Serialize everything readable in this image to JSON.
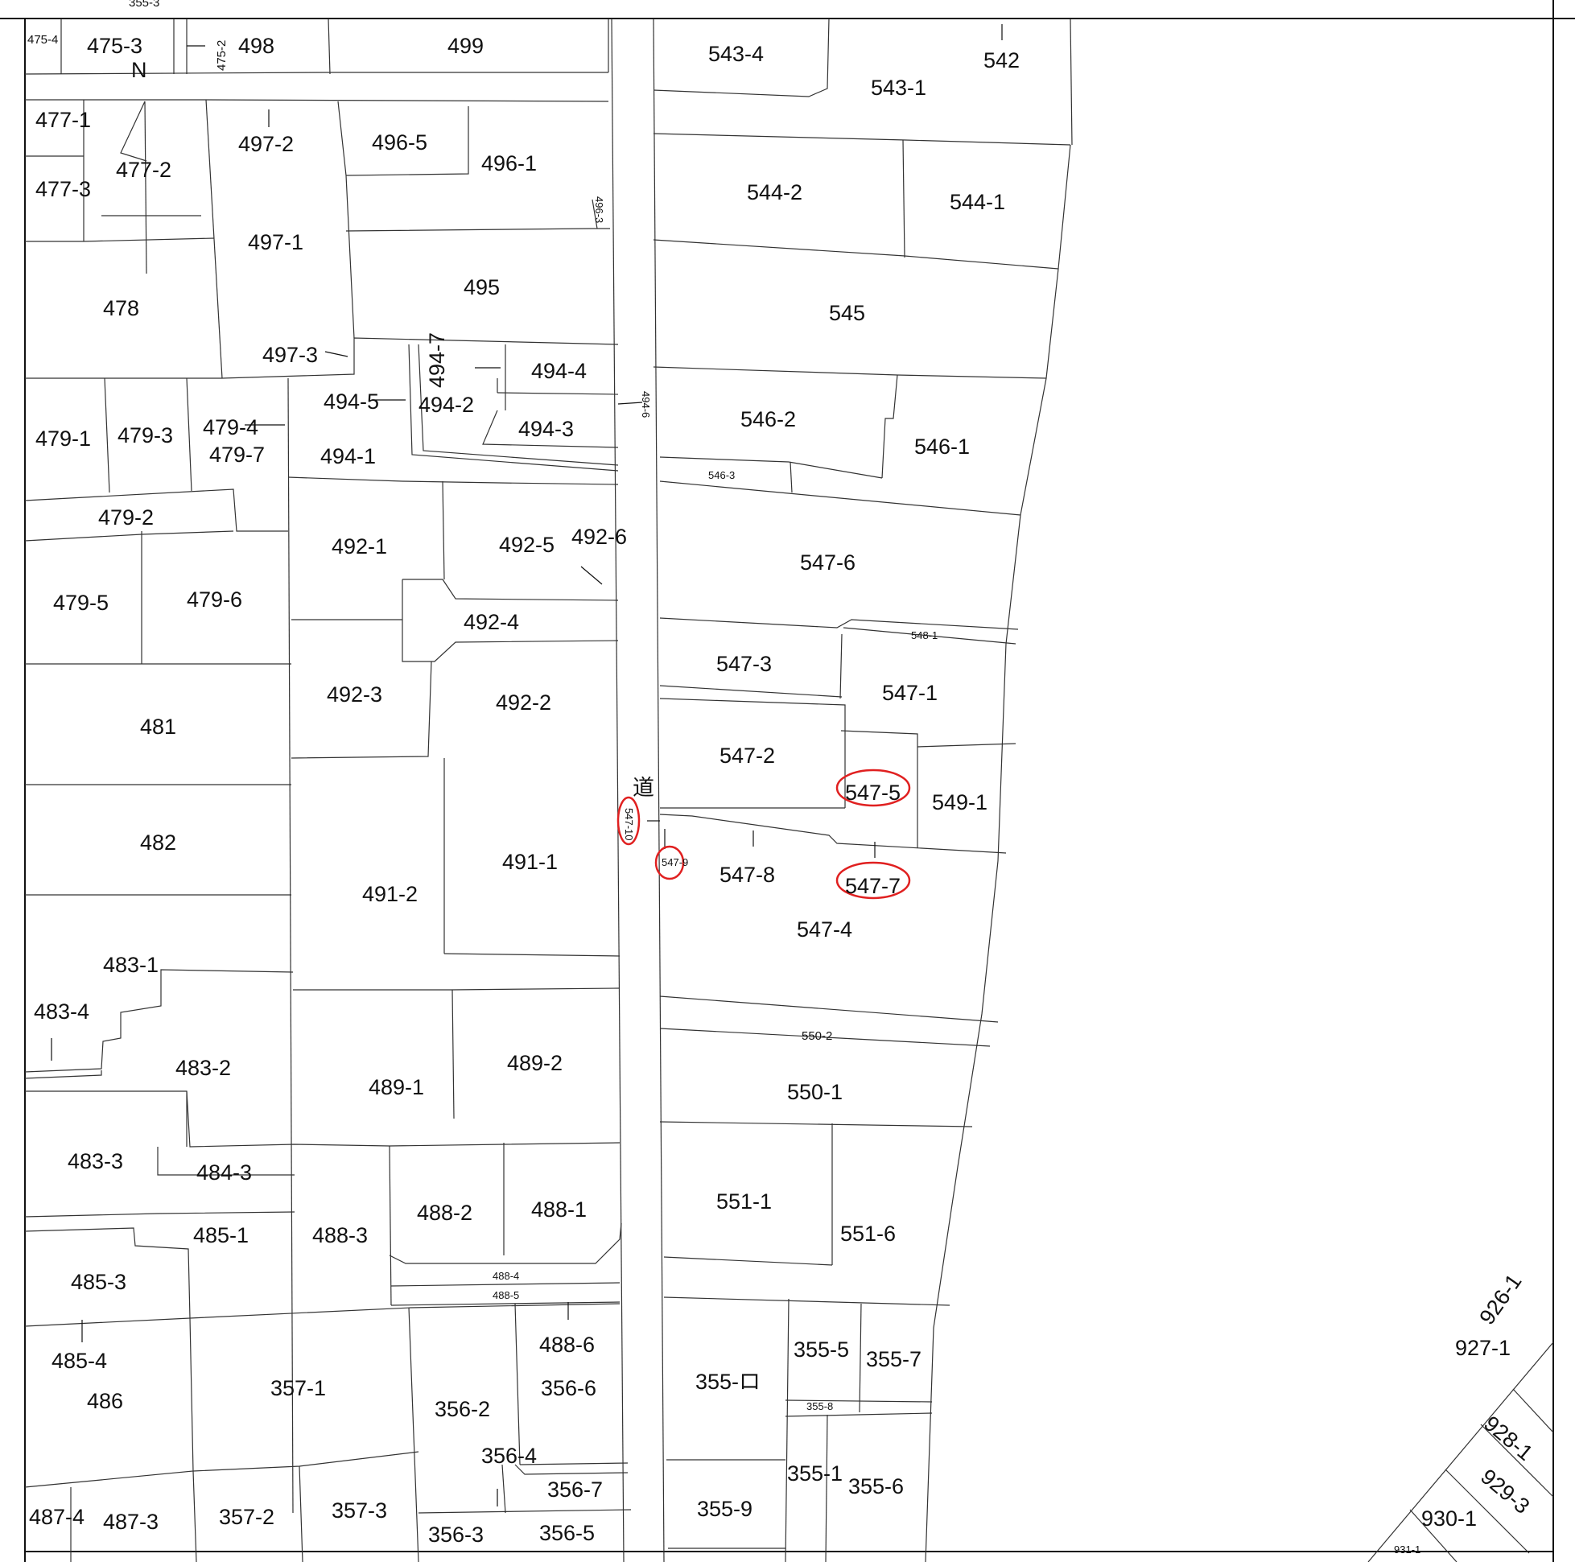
{
  "map": {
    "north_label": "N",
    "road_label": "道",
    "top_cut_label": "355-3",
    "parcels": {
      "p475_4": "475-4",
      "p475_3": "475-3",
      "p475_2": "475-2",
      "p498": "498",
      "p499": "499",
      "p543_4": "543-4",
      "p542": "542",
      "p543_1": "543-1",
      "p477_1": "477-1",
      "p477_2": "477-2",
      "p477_3": "477-3",
      "p497_2": "497-2",
      "p496_5": "496-5",
      "p496_1": "496-1",
      "p496_3": "496-3",
      "p497_1": "497-1",
      "p544_2": "544-2",
      "p544_1": "544-1",
      "p478": "478",
      "p495": "495",
      "p545": "545",
      "p497_3": "497-3",
      "p494_7": "494-7",
      "p494_4": "494-4",
      "p494_5": "494-5",
      "p494_2": "494-2",
      "p494_6": "494-6",
      "p546_2": "546-2",
      "p546_1": "546-1",
      "p479_1": "479-1",
      "p479_3": "479-3",
      "p479_4": "479-4",
      "p479_7": "479-7",
      "p494_3": "494-3",
      "p494_1": "494-1",
      "p546_3": "546-3",
      "p479_2": "479-2",
      "p492_1": "492-1",
      "p492_5": "492-5",
      "p492_6": "492-6",
      "p547_6": "547-6",
      "p479_5": "479-5",
      "p479_6": "479-6",
      "p492_4": "492-4",
      "p548_1": "548-1",
      "p547_3": "547-3",
      "p547_1": "547-1",
      "p492_3": "492-3",
      "p492_2": "492-2",
      "p481": "481",
      "p547_2": "547-2",
      "p547_5": "547-5",
      "p549_1": "549-1",
      "p547_10": "547-10",
      "p482": "482",
      "p491_1": "491-1",
      "p547_9": "547-9",
      "p547_8": "547-8",
      "p547_7": "547-7",
      "p491_2": "491-2",
      "p547_4": "547-4",
      "p483_1": "483-1",
      "p483_4": "483-4",
      "p550_2": "550-2",
      "p489_2": "489-2",
      "p483_2": "483-2",
      "p550_1": "550-1",
      "p489_1": "489-1",
      "p483_3": "483-3",
      "p484_3": "484-3",
      "p551_1": "551-1",
      "p485_1": "485-1",
      "p488_2": "488-2",
      "p488_1": "488-1",
      "p551_6": "551-6",
      "p488_3": "488-3",
      "p485_3": "485-3",
      "p488_4": "488-4",
      "p488_5": "488-5",
      "p926_1": "926-1",
      "p488_6": "488-6",
      "p485_4": "485-4",
      "p355_5": "355-5",
      "p927_1": "927-1",
      "p357_1": "357-1",
      "p356_6": "356-6",
      "p355_7": "355-7",
      "p486": "486",
      "p356_2": "356-2",
      "p355_ro": "355-ロ",
      "p355_8": "355-8",
      "p928_1": "928-1",
      "p356_4": "356-4",
      "p355_1": "355-1",
      "p355_6": "355-6",
      "p356_7": "356-7",
      "p929_3": "929-3",
      "p487_4": "487-4",
      "p487_3": "487-3",
      "p357_2": "357-2",
      "p357_3": "357-3",
      "p355_9": "355-9",
      "p930_1": "930-1",
      "p356_3": "356-3",
      "p356_5": "356-5",
      "p931_1": "931-1"
    },
    "highlighted": [
      "547-10",
      "547-9",
      "547-5",
      "547-7"
    ],
    "highlight_color": "#e02020"
  }
}
